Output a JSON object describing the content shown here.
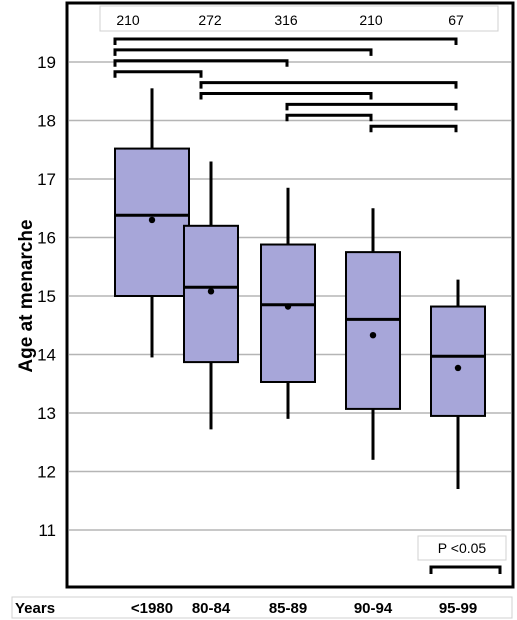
{
  "chart_data": {
    "type": "box",
    "ylabel": "Age at menarche",
    "xlabel": "Years",
    "ylim": [
      10.15,
      19.9
    ],
    "yticks": [
      11,
      12,
      13,
      14,
      15,
      16,
      17,
      18,
      19
    ],
    "grid": true,
    "categories": [
      "<1980",
      "80-84",
      "85-89",
      "90-94",
      "95-99"
    ],
    "n": [
      "210",
      "272",
      "316",
      "210",
      "67"
    ],
    "boxes": [
      {
        "whisker_low": 13.95,
        "q1": 15.0,
        "median": 16.38,
        "q3": 17.52,
        "whisker_high": 18.55,
        "mean": 16.3
      },
      {
        "whisker_low": 12.72,
        "q1": 13.87,
        "median": 15.15,
        "q3": 16.2,
        "whisker_high": 17.3,
        "mean": 15.08
      },
      {
        "whisker_low": 12.9,
        "q1": 13.53,
        "median": 14.85,
        "q3": 15.88,
        "whisker_high": 16.85,
        "mean": 14.82
      },
      {
        "whisker_low": 12.2,
        "q1": 13.07,
        "median": 14.6,
        "q3": 15.75,
        "whisker_high": 16.5,
        "mean": 14.33
      },
      {
        "whisker_low": 11.7,
        "q1": 12.95,
        "median": 13.97,
        "q3": 14.82,
        "whisker_high": 15.28,
        "mean": 13.77
      }
    ],
    "significance_brackets": [
      {
        "from": 0,
        "to": 4,
        "level": 1
      },
      {
        "from": 0,
        "to": 3,
        "level": 2
      },
      {
        "from": 0,
        "to": 2,
        "level": 3
      },
      {
        "from": 0,
        "to": 1,
        "level": 4
      },
      {
        "from": 1,
        "to": 4,
        "level": 5
      },
      {
        "from": 1,
        "to": 3,
        "level": 6
      },
      {
        "from": 2,
        "to": 4,
        "level": 7
      },
      {
        "from": 2,
        "to": 3,
        "level": 8
      },
      {
        "from": 3,
        "to": 4,
        "level": 9
      }
    ],
    "legend": {
      "text": "P <0.05",
      "position": "bottom-right"
    },
    "colors": {
      "box_fill": "#a7a6d9",
      "grid": "#b5b5b5",
      "line": "#000000"
    }
  }
}
